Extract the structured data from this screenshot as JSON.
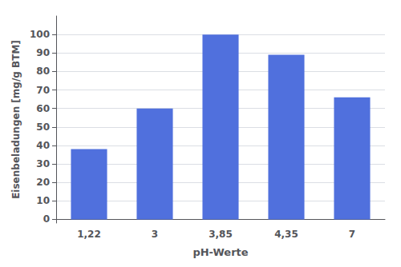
{
  "chart_data": {
    "type": "bar",
    "categories": [
      "1,22",
      "3",
      "3,85",
      "4,35",
      "7"
    ],
    "values": [
      38,
      60,
      100,
      89,
      66
    ],
    "xlabel": "pH-Werte",
    "ylabel": "Eisenbeladungen [mg/g BTM]",
    "ylim": [
      -2,
      110
    ],
    "yticks": [
      0,
      10,
      20,
      30,
      40,
      50,
      60,
      70,
      80,
      90,
      100
    ],
    "grid": true
  }
}
